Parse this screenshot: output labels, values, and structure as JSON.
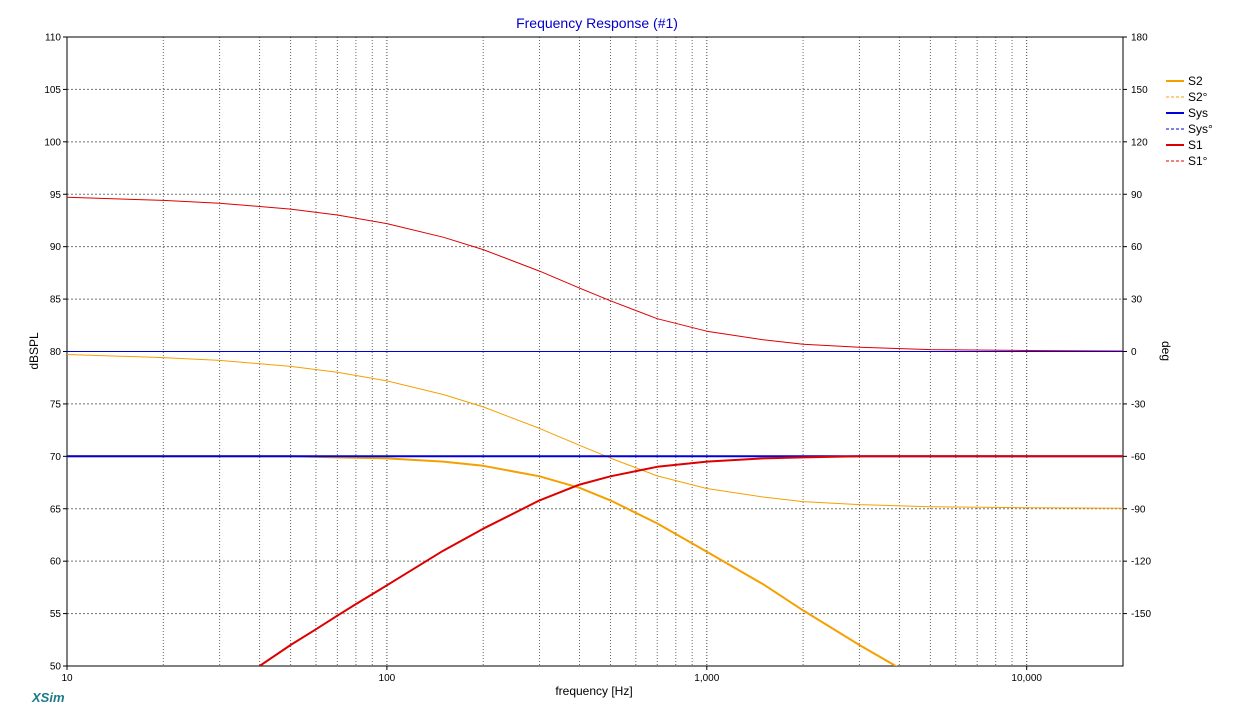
{
  "chart_data": {
    "type": "line",
    "title": "Frequency Response (#1)",
    "xlabel": "frequency [Hz]",
    "ylabel": "dBSPL",
    "y2label": "deg",
    "xscale": "log",
    "xlim": [
      10,
      20000
    ],
    "ylim": [
      50,
      110
    ],
    "y2lim": [
      -180,
      180
    ],
    "grid": true,
    "legend_position": "right",
    "x_ticks": [
      {
        "value": 10,
        "label": "10"
      },
      {
        "value": 100,
        "label": "100"
      },
      {
        "value": 1000,
        "label": "1,000"
      },
      {
        "value": 10000,
        "label": "10,000"
      }
    ],
    "y_ticks": [
      {
        "value": 110,
        "label": "110"
      },
      {
        "value": 105,
        "label": "105"
      },
      {
        "value": 100,
        "label": "100"
      },
      {
        "value": 95,
        "label": "95"
      },
      {
        "value": 90,
        "label": "90"
      },
      {
        "value": 85,
        "label": "85"
      },
      {
        "value": 80,
        "label": "80"
      },
      {
        "value": 75,
        "label": "75"
      },
      {
        "value": 70,
        "label": "70"
      },
      {
        "value": 65,
        "label": "65"
      },
      {
        "value": 60,
        "label": "60"
      },
      {
        "value": 55,
        "label": "55"
      },
      {
        "value": 50,
        "label": "50"
      }
    ],
    "y2_ticks": [
      {
        "value": 180,
        "label": "180"
      },
      {
        "value": 150,
        "label": "150"
      },
      {
        "value": 120,
        "label": "120"
      },
      {
        "value": 90,
        "label": "90"
      },
      {
        "value": 60,
        "label": "60"
      },
      {
        "value": 30,
        "label": "30"
      },
      {
        "value": 0,
        "label": "0"
      },
      {
        "value": -30,
        "label": "-30"
      },
      {
        "value": -60,
        "label": "-60"
      },
      {
        "value": -90,
        "label": "-90"
      },
      {
        "value": -120,
        "label": "-120"
      },
      {
        "value": -150,
        "label": "-150"
      }
    ],
    "series": [
      {
        "name": "S2",
        "color": "#f5a000",
        "style": "solid",
        "axis": "left",
        "width": 2,
        "x": [
          10,
          20,
          30,
          50,
          70,
          100,
          150,
          200,
          300,
          400,
          500,
          700,
          1000,
          1500,
          2000,
          3000,
          4000
        ],
        "values": [
          70,
          70,
          70,
          70,
          69.9,
          69.8,
          69.5,
          69.1,
          68.1,
          67,
          65.8,
          63.6,
          60.9,
          57.8,
          55.3,
          52,
          49.8
        ]
      },
      {
        "name": "S2°",
        "color": "#f5a000",
        "style": "dashed",
        "axis": "right",
        "width": 1,
        "x": [
          10,
          20,
          30,
          50,
          70,
          100,
          150,
          200,
          300,
          400,
          500,
          700,
          1000,
          1500,
          2000,
          3000,
          5000,
          10000,
          20000
        ],
        "values": [
          -1.7,
          -3.5,
          -5.1,
          -8.5,
          -11.9,
          -16.8,
          -24.6,
          -31.7,
          -44,
          -53.7,
          -61,
          -71.2,
          -78.4,
          -83.3,
          -85.9,
          -87.6,
          -88.9,
          -89.4,
          -89.7
        ]
      },
      {
        "name": "Sys",
        "color": "#0000dd",
        "style": "solid",
        "axis": "left",
        "width": 2,
        "x": [
          10,
          20000
        ],
        "values": [
          70,
          70
        ]
      },
      {
        "name": "Sys°",
        "color": "#0000dd",
        "style": "dashed",
        "axis": "right",
        "width": 1,
        "x": [
          10,
          20000
        ],
        "values": [
          0,
          0
        ]
      },
      {
        "name": "S1",
        "color": "#dd0000",
        "style": "solid",
        "axis": "left",
        "width": 2,
        "x": [
          40,
          50,
          60,
          70,
          80,
          100,
          150,
          200,
          300,
          400,
          500,
          700,
          1000,
          1500,
          2000,
          3000,
          5000,
          10000,
          20000
        ],
        "values": [
          50,
          52,
          53.5,
          54.8,
          55.9,
          57.7,
          61,
          63.1,
          65.8,
          67.3,
          68.1,
          69,
          69.5,
          69.8,
          69.9,
          70,
          70,
          70,
          70
        ]
      },
      {
        "name": "S1°",
        "color": "#dd0000",
        "style": "dashed",
        "axis": "right",
        "width": 1,
        "x": [
          10,
          20,
          30,
          50,
          70,
          100,
          150,
          200,
          300,
          400,
          500,
          700,
          1000,
          1500,
          2000,
          3000,
          5000,
          10000,
          20000
        ],
        "values": [
          88.3,
          86.5,
          84.9,
          81.5,
          78.1,
          73.2,
          65.4,
          58.3,
          46,
          36.3,
          29,
          18.8,
          11.6,
          6.7,
          4.1,
          2.4,
          1.1,
          0.6,
          0.3
        ]
      }
    ]
  },
  "footer": {
    "brand": "XSim"
  }
}
